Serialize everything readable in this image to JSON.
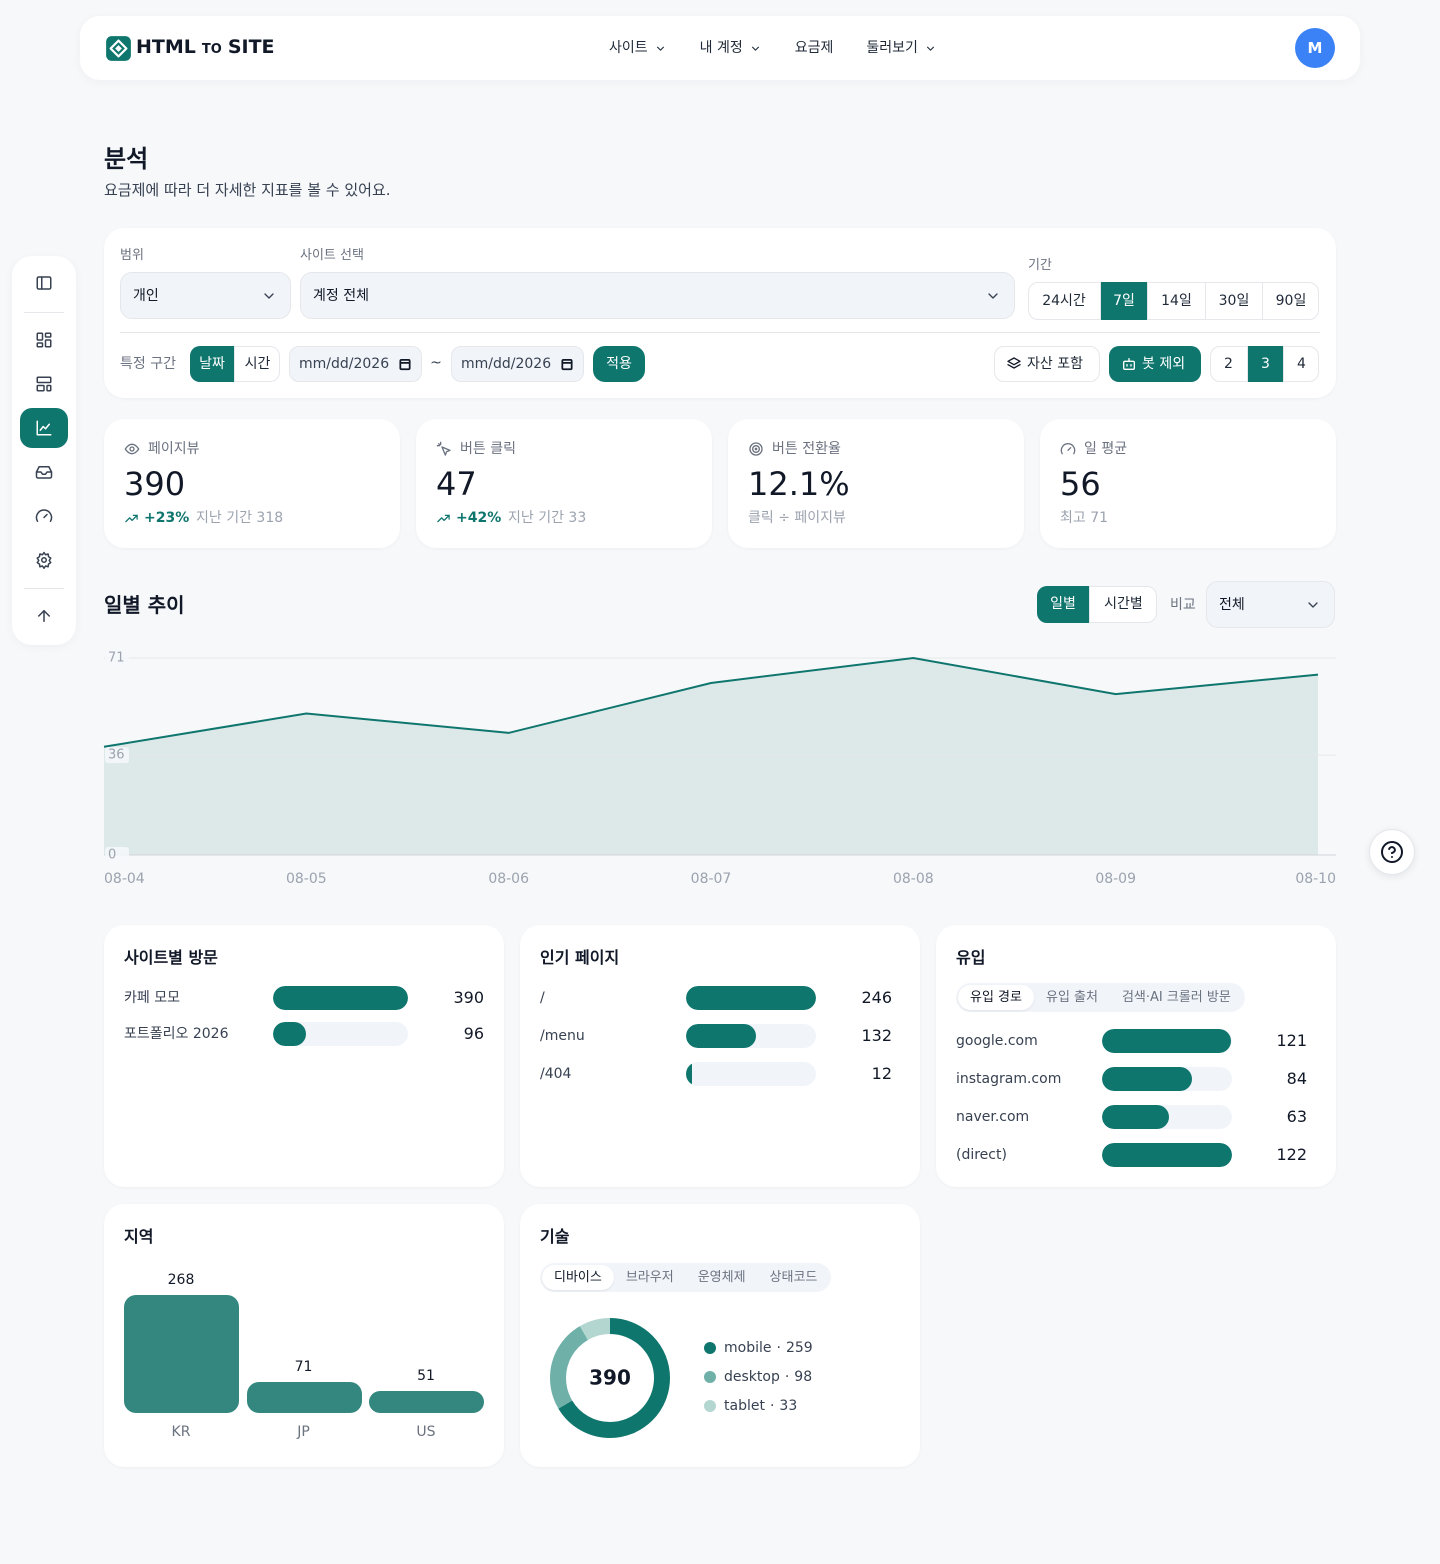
{
  "nav": {
    "brand": {
      "main": "HTML",
      "small": "TO",
      "end": "SITE"
    },
    "menu": [
      {
        "label": "사이트",
        "dropdown": true
      },
      {
        "label": "내 계정",
        "dropdown": true
      },
      {
        "label": "요금제",
        "dropdown": false
      },
      {
        "label": "둘러보기",
        "dropdown": true
      }
    ],
    "avatar": "M"
  },
  "header": {
    "title": "분석",
    "subtitle": "요금제에 따라 더 자세한 지표를 볼 수 있어요."
  },
  "filters": {
    "scope": {
      "label": "범위",
      "value": "개인"
    },
    "site": {
      "label": "사이트 선택",
      "value": "계정 전체"
    },
    "period": {
      "label": "기간",
      "options": [
        "24시간",
        "7일",
        "14일",
        "30일",
        "90일"
      ],
      "active": 1
    },
    "range": {
      "label": "특정 구간",
      "modes": [
        "날짜",
        "시간"
      ],
      "active": 0,
      "from": "mm/dd/2026",
      "separator": "~",
      "to": "mm/dd/2026",
      "apply": "적용"
    },
    "asset": "자산 포함",
    "bot": "봇 제외",
    "depth": {
      "options": [
        2,
        3,
        4
      ],
      "active": 1
    }
  },
  "stats": [
    {
      "label": "페이지뷰",
      "value": "390",
      "change": "+23%",
      "note": "지난 기간 318"
    },
    {
      "label": "버튼 클릭",
      "value": "47",
      "change": "+42%",
      "note": "지난 기간 33"
    },
    {
      "label": "버튼 전환율",
      "value": "12.1%",
      "note": "클릭 ÷ 페이지뷰"
    },
    {
      "label": "일 평균",
      "value": "56",
      "note": "최고 71"
    }
  ],
  "trend": {
    "title": "일별 추이",
    "modes": [
      "일별",
      "시간별"
    ],
    "active": 0,
    "compare": {
      "label": "비교",
      "value": "전체"
    }
  },
  "chart_data": {
    "type": "line",
    "x": [
      "08-04",
      "08-05",
      "08-06",
      "08-07",
      "08-08",
      "08-09",
      "08-10"
    ],
    "values": [
      39,
      51,
      44,
      62,
      71,
      58,
      65
    ],
    "ylim": [
      0,
      71
    ],
    "yticks": [
      0,
      36,
      71
    ],
    "color": "#0f766e",
    "fill": "#dde9e9",
    "grid": true
  },
  "site_visits": {
    "title": "사이트별 방문",
    "rows": [
      {
        "label": "카페 모모",
        "value": 390
      },
      {
        "label": "포트폴리오 2026",
        "value": 96
      }
    ]
  },
  "top_pages": {
    "title": "인기 페이지",
    "rows": [
      {
        "label": "/",
        "value": 246
      },
      {
        "label": "/menu",
        "value": 132
      },
      {
        "label": "/404",
        "value": 12
      }
    ]
  },
  "inflow": {
    "title": "유입",
    "tabs": [
      "유입 경로",
      "유입 출처",
      "검색·AI 크롤러 방문"
    ],
    "active": 0,
    "rows": [
      {
        "label": "google.com",
        "value": 121
      },
      {
        "label": "instagram.com",
        "value": 84
      },
      {
        "label": "naver.com",
        "value": 63
      },
      {
        "label": "(direct)",
        "value": 122
      }
    ]
  },
  "region": {
    "title": "지역",
    "type": "bar",
    "categories": [
      "KR",
      "JP",
      "US"
    ],
    "values": [
      268,
      71,
      51
    ],
    "color": "#33877e"
  },
  "tech": {
    "title": "기술",
    "tabs": [
      "디바이스",
      "브라우저",
      "운영체제",
      "상태코드"
    ],
    "active": 0,
    "type": "pie",
    "total": 390,
    "separator": "·",
    "series": [
      {
        "name": "mobile",
        "value": 259,
        "color": "#0f766e"
      },
      {
        "name": "desktop",
        "value": 98,
        "color": "#6fb0a8"
      },
      {
        "name": "tablet",
        "value": 33,
        "color": "#b3d6d1"
      }
    ]
  }
}
